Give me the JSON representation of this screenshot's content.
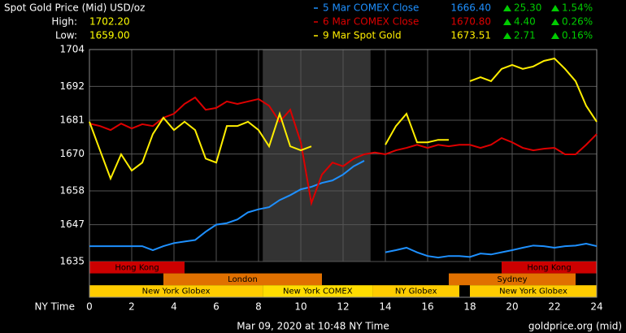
{
  "chart_data": {
    "type": "line",
    "title": "Spot Gold Price (Mid) USD/oz",
    "high_label": "High:",
    "high_value": "1702.20",
    "low_label": "Low:",
    "low_value": "1659.00",
    "x_label": "NY Time",
    "timestamp": "Mar 09, 2020 at 10:48 NY Time",
    "source": "goldprice.org (mid)",
    "xlim": [
      0,
      24
    ],
    "xticks": [
      0,
      2,
      4,
      6,
      8,
      10,
      12,
      14,
      16,
      18,
      20,
      22,
      24
    ],
    "ylim": [
      1635,
      1704
    ],
    "yticks": [
      1635,
      1647,
      1658,
      1670,
      1681,
      1692,
      1704
    ],
    "grid": true,
    "shaded_range": [
      8.2,
      13.3
    ],
    "shade_color": "#333333",
    "x": [
      0,
      0.5,
      1,
      1.5,
      2,
      2.5,
      3,
      3.5,
      4,
      4.5,
      5,
      5.5,
      6,
      6.5,
      7,
      7.5,
      8,
      8.5,
      9,
      9.5,
      10,
      10.5,
      11,
      11.5,
      12,
      12.5,
      13,
      13.5,
      14,
      14.5,
      15,
      15.5,
      16,
      16.5,
      17,
      17.5,
      18,
      18.5,
      19,
      19.5,
      20,
      20.5,
      21,
      21.5,
      22,
      22.5,
      23,
      23.5,
      24
    ],
    "series": [
      {
        "name": "5 Mar COMEX Close",
        "color": "#1e90ff",
        "close": "1666.40",
        "change": "25.30",
        "change_pct": "1.54%",
        "values": [
          1640,
          1640,
          1640,
          1640,
          1640,
          1640,
          1638.7,
          1640,
          1641,
          1641.5,
          1642,
          1644.7,
          1647,
          1647.5,
          1648.7,
          1651,
          1652,
          1652.7,
          1655,
          1656.6,
          1658.5,
          1659.3,
          1660.6,
          1661.4,
          1663.3,
          1666,
          1667.8,
          null,
          1638,
          1638.7,
          1639.5,
          1638,
          1636.8,
          1636.3,
          1636.8,
          1636.8,
          1636.5,
          1637.6,
          1637.3,
          1638,
          1638.7,
          1639.5,
          1640.2,
          1640,
          1639.5,
          1640,
          1640.2,
          1640.8,
          1640
        ]
      },
      {
        "name": "6 Mar COMEX Close",
        "color": "#dd0000",
        "close": "1670.80",
        "change": "4.40",
        "change_pct": "0.26%",
        "values": [
          1679.9,
          1679.1,
          1677.8,
          1679.9,
          1678.3,
          1679.7,
          1679.1,
          1681.8,
          1683.1,
          1686.3,
          1688.4,
          1684.4,
          1685,
          1687.1,
          1686.3,
          1687.1,
          1687.9,
          1685.7,
          1680.5,
          1684.4,
          1673.8,
          1654,
          1663.3,
          1667.2,
          1666,
          1668.5,
          1669.9,
          1670.5,
          1669.9,
          1671.2,
          1672,
          1673,
          1672,
          1673,
          1672.5,
          1673,
          1673,
          1672,
          1673,
          1675.2,
          1673.8,
          1672,
          1671.2,
          1671.7,
          1672,
          1669.9,
          1669.9,
          1673,
          1676.5
        ]
      },
      {
        "name": "9 Mar Spot Gold",
        "color": "#ffee00",
        "close": "1673.51",
        "change": "2.71",
        "change_pct": "0.16%",
        "values": [
          1680.5,
          1671.2,
          1662,
          1669.9,
          1664.6,
          1667.2,
          1676.5,
          1681.8,
          1677.8,
          1680.5,
          1677.8,
          1668.5,
          1667.2,
          1679.1,
          1679.1,
          1680.5,
          1677.8,
          1672.5,
          1683.1,
          1672.5,
          1671.2,
          1672.5,
          null,
          null,
          null,
          null,
          null,
          null,
          1673,
          1679.1,
          1683.1,
          1673.8,
          1673.8,
          1674.6,
          1674.6,
          null,
          1693.7,
          1695,
          1693.7,
          1697.7,
          1699,
          1697.7,
          1698.5,
          1700.3,
          1701.1,
          1697.7,
          1693.7,
          1685.7,
          1680.5
        ]
      }
    ],
    "sessions": [
      {
        "name": "Hong Kong",
        "start": 0,
        "end": 4.5,
        "row": 0,
        "color": "#cc0000"
      },
      {
        "name": "Hong Kong",
        "start": 19.5,
        "end": 24,
        "row": 0,
        "color": "#cc0000"
      },
      {
        "name": "London",
        "start": 3.5,
        "end": 11,
        "row": 1,
        "color": "#e07000"
      },
      {
        "name": "Sydney",
        "start": 17,
        "end": 23,
        "row": 1,
        "color": "#e07000"
      },
      {
        "name": "New York Globex",
        "start": 0,
        "end": 8.2,
        "row": 2,
        "color": "#ffcc00"
      },
      {
        "name": "New York COMEX",
        "start": 8.2,
        "end": 13.4,
        "row": 2,
        "color": "#ffdd00"
      },
      {
        "name": "NY Globex",
        "start": 13.4,
        "end": 17.5,
        "row": 2,
        "color": "#ffcc00"
      },
      {
        "name": "New York Globex",
        "start": 18,
        "end": 24,
        "row": 2,
        "color": "#ffcc00"
      }
    ]
  }
}
